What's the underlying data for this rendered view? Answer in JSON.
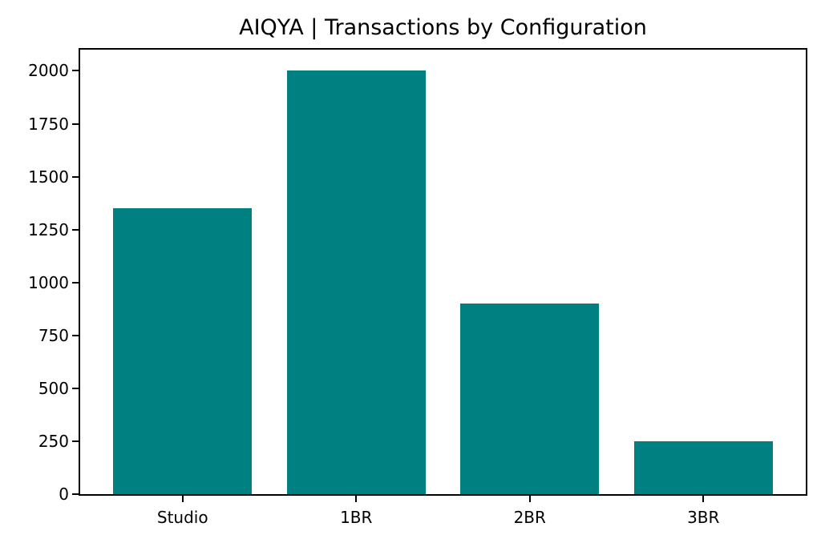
{
  "chart_data": {
    "type": "bar",
    "title": "AIQYA | Transactions by Configuration",
    "categories": [
      "Studio",
      "1BR",
      "2BR",
      "3BR"
    ],
    "values": [
      1350,
      2000,
      900,
      250
    ],
    "xlabel": "",
    "ylabel": "",
    "ylim": [
      0,
      2100
    ],
    "yticks": [
      0,
      250,
      500,
      750,
      1000,
      1250,
      1500,
      1750,
      2000
    ],
    "bar_relative_width": 0.8,
    "bar_color": "#008080",
    "axis_color": "#000000",
    "text_color": "#000000",
    "background_color": "#ffffff",
    "grid": false,
    "legend": "none"
  }
}
